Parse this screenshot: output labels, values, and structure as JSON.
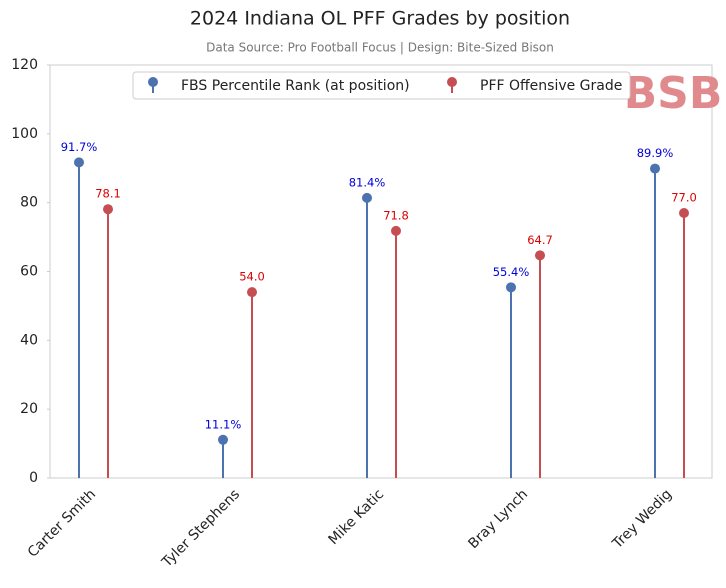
{
  "chart_data": {
    "type": "lollipop",
    "title": "2024 Indiana OL PFF Grades by position",
    "subtitle": "Data Source: Pro Football Focus | Design: Bite-Sized Bison",
    "logo": "BSB",
    "categories": [
      "Carter Smith",
      "Tyler Stephens",
      "Mike Katic",
      "Bray Lynch",
      "Trey Wedig"
    ],
    "series": [
      {
        "name": "FBS Percentile Rank (at position)",
        "color": "#4c72b0",
        "label_color": "#0000dd",
        "values": [
          91.7,
          11.1,
          81.4,
          55.4,
          89.9
        ],
        "value_labels": [
          "91.7%",
          "11.1%",
          "81.4%",
          "55.4%",
          "89.9%"
        ]
      },
      {
        "name": "PFF Offensive Grade",
        "color": "#c44e52",
        "label_color": "#dd0000",
        "values": [
          78.1,
          54.0,
          71.8,
          64.7,
          77.0
        ],
        "value_labels": [
          "78.1",
          "54.0",
          "71.8",
          "64.7",
          "77.0"
        ]
      }
    ],
    "ylim": [
      0,
      120
    ],
    "yticks": [
      0,
      20,
      40,
      60,
      80,
      100,
      120
    ],
    "grid": false,
    "legend": "upper center"
  }
}
